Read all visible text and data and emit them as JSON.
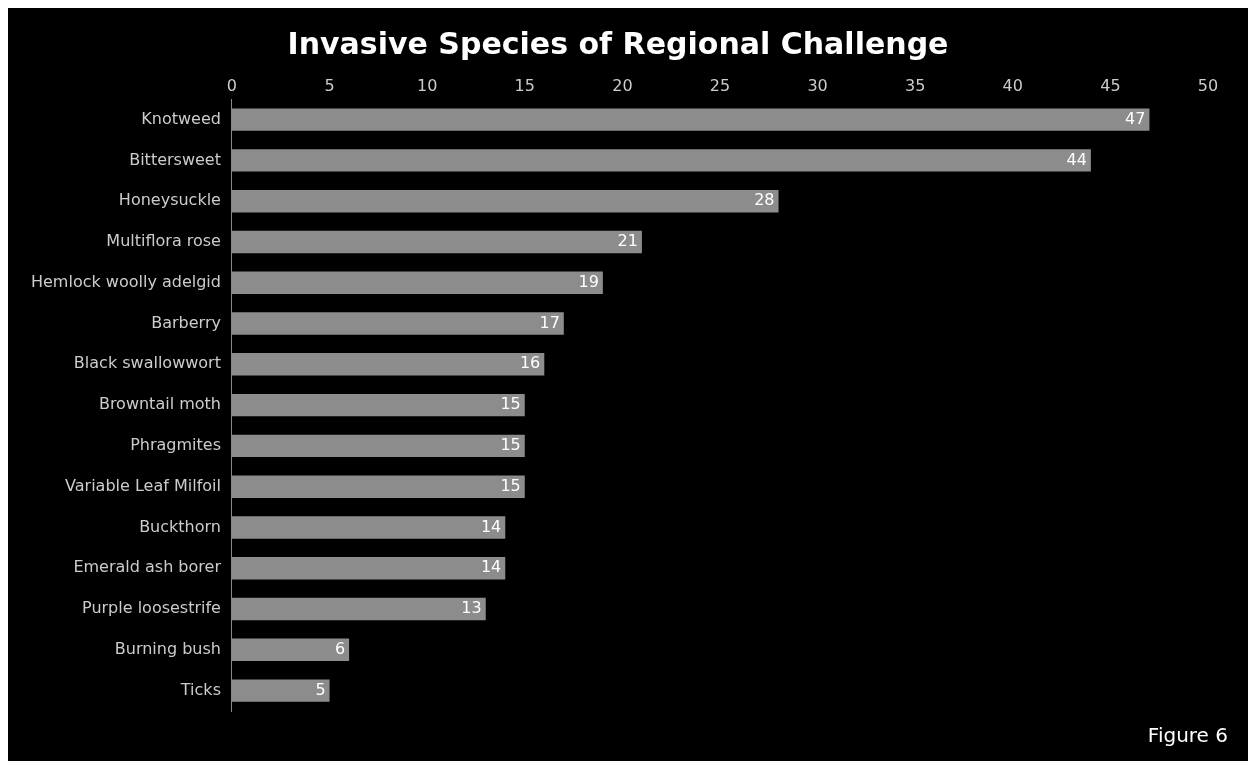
{
  "chart_data": {
    "type": "bar",
    "orientation": "horizontal",
    "title": "Invasive Species of Regional Challenge",
    "categories": [
      "Knotweed",
      "Bittersweet",
      "Honeysuckle",
      "Multiflora rose",
      "Hemlock woolly adelgid",
      "Barberry",
      "Black swallowwort",
      "Browntail moth",
      "Phragmites",
      "Variable Leaf Milfoil",
      "Buckthorn",
      "Emerald ash borer",
      "Purple loosestrife",
      "Burning bush",
      "Ticks"
    ],
    "values": [
      47,
      44,
      28,
      21,
      19,
      17,
      16,
      15,
      15,
      15,
      14,
      14,
      13,
      6,
      5
    ],
    "color": "#8c8c8c",
    "xlim": [
      0,
      50
    ],
    "xticks": [
      0,
      5,
      10,
      15,
      20,
      25,
      30,
      35,
      40,
      45,
      50
    ],
    "grid": false,
    "legend": false,
    "data_labels": true,
    "annotations": [
      "Figure 6"
    ]
  }
}
